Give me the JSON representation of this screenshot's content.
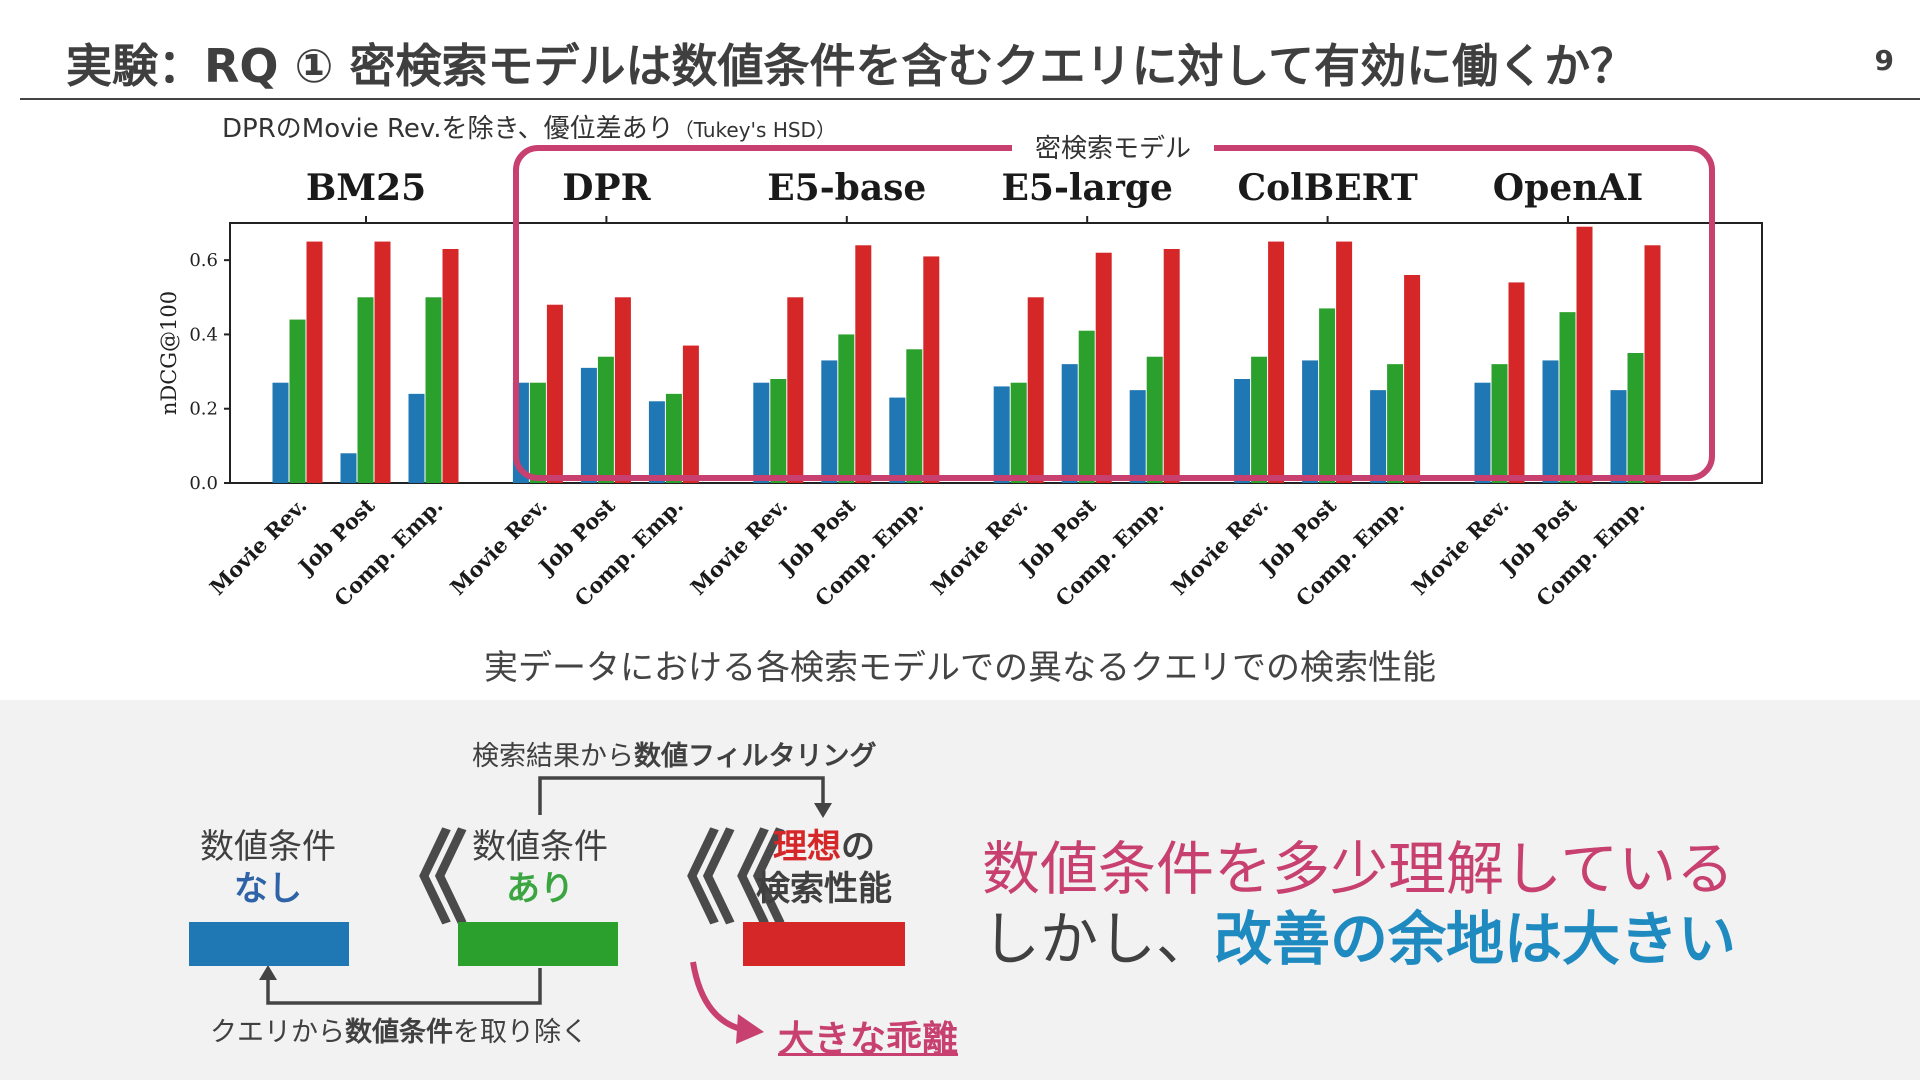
{
  "header": {
    "title": "実験：RQ ① 密検索モデルは数値条件を含むクエリに対して有効に働くか？",
    "page_number": "9"
  },
  "note": {
    "text": "DPRのMovie Rev.を除き、優位差あり",
    "test": "（Tukey's HSD）"
  },
  "dense_box_label": "密検索モデル",
  "chart_data": {
    "type": "bar",
    "ylabel": "nDCG@100",
    "ylim": [
      0,
      0.7
    ],
    "yticks": [
      "0.0",
      "0.2",
      "0.4",
      "0.6"
    ],
    "grid": false,
    "groups": [
      "BM25",
      "DPR",
      "E5-base",
      "E5-large",
      "ColBERT",
      "OpenAI"
    ],
    "categories": [
      "Movie Rev.",
      "Job Post",
      "Comp. Emp."
    ],
    "bar_colors": [
      "#1f77b4",
      "#2ca02c",
      "#d62728"
    ],
    "values": [
      [
        [
          0.27,
          0.44,
          0.65
        ],
        [
          0.08,
          0.5,
          0.65
        ],
        [
          0.24,
          0.5,
          0.63
        ]
      ],
      [
        [
          0.27,
          0.27,
          0.48
        ],
        [
          0.31,
          0.34,
          0.5
        ],
        [
          0.22,
          0.24,
          0.37
        ]
      ],
      [
        [
          0.27,
          0.28,
          0.5
        ],
        [
          0.33,
          0.4,
          0.64
        ],
        [
          0.23,
          0.36,
          0.61
        ]
      ],
      [
        [
          0.26,
          0.27,
          0.5
        ],
        [
          0.32,
          0.41,
          0.62
        ],
        [
          0.25,
          0.34,
          0.63
        ]
      ],
      [
        [
          0.28,
          0.34,
          0.65
        ],
        [
          0.33,
          0.47,
          0.65
        ],
        [
          0.25,
          0.32,
          0.56
        ]
      ],
      [
        [
          0.27,
          0.32,
          0.54
        ],
        [
          0.33,
          0.46,
          0.69
        ],
        [
          0.25,
          0.35,
          0.64
        ]
      ]
    ]
  },
  "chart_caption": "実データにおける各検索モデルでの異なるクエリでの検索性能",
  "flow": {
    "filter_label_pre": "検索結果から",
    "filter_label_bold": "数値フィルタリング",
    "none_line1": "数値条件",
    "none_line2": "なし",
    "with_line1": "数値条件",
    "with_line2": "あり",
    "ideal_red": "理想",
    "ideal_no": "の",
    "ideal_line2": "検索性能",
    "chevron_single": "《",
    "chevron_double": "《《",
    "remove_label_pre": "クエリから",
    "remove_label_bold": "数値条件",
    "remove_label_post": "を取り除く",
    "gap_label": "大きな乖離",
    "colors": {
      "blue": "#1f77b4",
      "green": "#2ca02c",
      "red": "#d62728",
      "pink": "#c7406f",
      "cyan": "#1f8ac0"
    }
  },
  "conclusion": {
    "line1": "数値条件を多少理解している",
    "line2_pre": "しかし、",
    "line2_highlight": "改善の余地は大きい"
  }
}
